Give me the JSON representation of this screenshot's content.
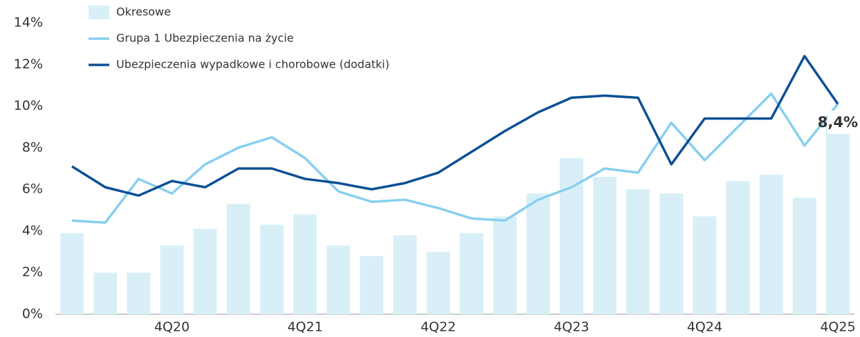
{
  "chart_data": {
    "type": "bar_line",
    "categories": [
      null,
      null,
      null,
      "4Q20",
      null,
      null,
      null,
      "4Q21",
      null,
      null,
      null,
      "4Q22",
      null,
      null,
      null,
      "4Q23",
      null,
      null,
      null,
      "4Q24",
      null,
      null,
      null,
      "4Q25"
    ],
    "series": [
      {
        "name": "Okresowe",
        "type": "bar",
        "color": "#d9eff8",
        "values": [
          3.9,
          2.0,
          2.0,
          3.3,
          4.1,
          5.3,
          4.3,
          4.8,
          3.3,
          2.8,
          3.8,
          3.0,
          3.9,
          4.7,
          5.8,
          7.5,
          6.6,
          6.0,
          5.8,
          4.7,
          6.4,
          6.7,
          5.6,
          9.4
        ]
      },
      {
        "name": "Grupa 1 Ubezpieczenia na życie",
        "type": "line",
        "color": "#87cfee",
        "values": [
          4.5,
          4.4,
          6.5,
          5.8,
          7.2,
          8.0,
          8.5,
          7.5,
          5.9,
          5.4,
          5.5,
          5.1,
          4.6,
          4.5,
          5.5,
          6.1,
          7.0,
          6.8,
          9.2,
          7.4,
          9.0,
          10.6,
          8.1,
          10.1
        ]
      },
      {
        "name": "Ubezpieczenia wypadkowe i chorobowe (dodatki)",
        "type": "line",
        "color": "#0b4f94",
        "values": [
          7.1,
          6.1,
          5.7,
          6.4,
          6.1,
          7.0,
          7.0,
          6.5,
          6.3,
          6.0,
          6.3,
          6.8,
          7.8,
          8.8,
          9.7,
          10.4,
          10.5,
          10.4,
          7.2,
          9.4,
          9.4,
          9.4,
          12.4,
          10.1
        ]
      }
    ],
    "annotations": [
      {
        "text": "8,4%",
        "color": "#1a9fd6"
      }
    ],
    "ylim": [
      0,
      14
    ],
    "yticks": [
      {
        "value": 0,
        "label": "0%"
      },
      {
        "value": 2,
        "label": "2%"
      },
      {
        "value": 4,
        "label": "4%"
      },
      {
        "value": 6,
        "label": "6%"
      },
      {
        "value": 8,
        "label": "8%"
      },
      {
        "value": 10,
        "label": "10%"
      },
      {
        "value": 12,
        "label": "12%"
      },
      {
        "value": 14,
        "label": "14%"
      }
    ],
    "legend": "top-left",
    "grid": false
  }
}
